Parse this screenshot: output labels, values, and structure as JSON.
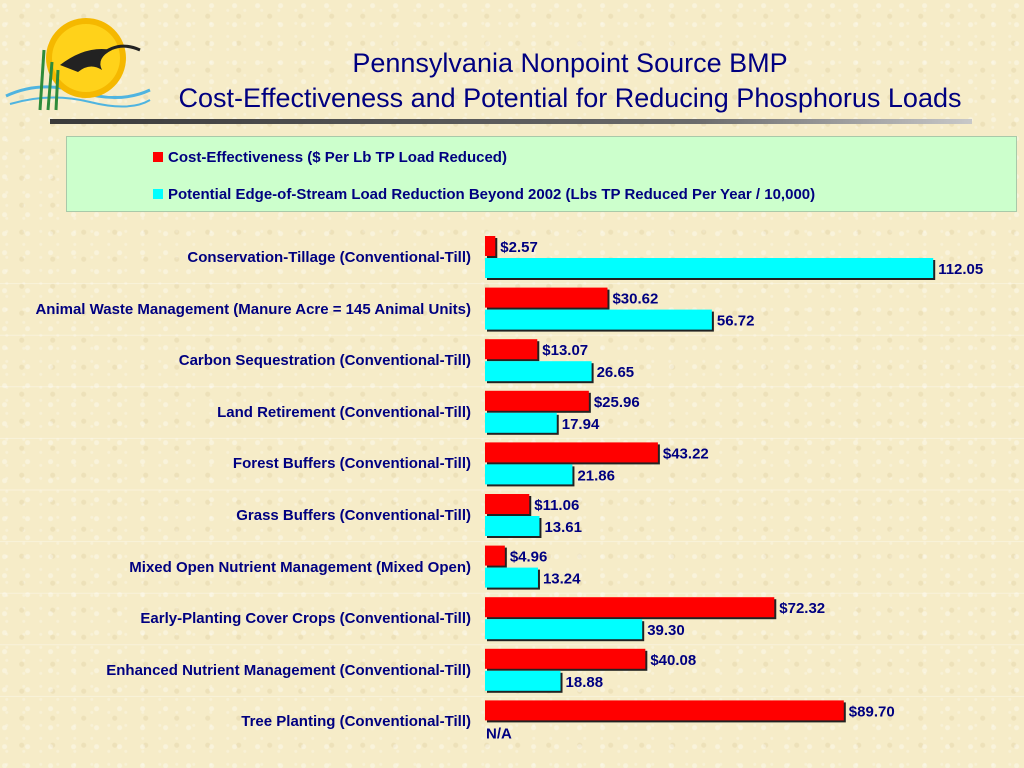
{
  "title": {
    "line1": "Pennsylvania Nonpoint Source BMP",
    "line2": "Cost-Effectiveness and Potential for Reducing Phosphorus Loads"
  },
  "colors": {
    "cost": "#ff0000",
    "load": "#00ffff",
    "title": "#000080",
    "legend_bg": "#ccffcc"
  },
  "chart_data": {
    "type": "bar",
    "orientation": "horizontal",
    "categories": [
      "Conservation-Tillage (Conventional-Till)",
      "Animal Waste Management (Manure Acre = 145 Animal Units)",
      "Carbon Sequestration (Conventional-Till)",
      "Land Retirement (Conventional-Till)",
      "Forest Buffers (Conventional-Till)",
      "Grass Buffers (Conventional-Till)",
      "Mixed Open Nutrient Management (Mixed Open)",
      "Early-Planting Cover Crops (Conventional-Till)",
      "Enhanced Nutrient Management (Conventional-Till)",
      "Tree Planting (Conventional-Till)"
    ],
    "series": [
      {
        "name": "Cost-Effectiveness ($ Per Lb TP Load Reduced)",
        "values": [
          2.57,
          30.62,
          13.07,
          25.96,
          43.22,
          11.06,
          4.96,
          72.32,
          40.08,
          89.7
        ],
        "labels": [
          "$2.57",
          "$30.62",
          "$13.07",
          "$25.96",
          "$43.22",
          "$11.06",
          "$4.96",
          "$72.32",
          "$40.08",
          "$89.70"
        ]
      },
      {
        "name": "Potential Edge-of-Stream Load Reduction Beyond 2002 (Lbs TP Reduced Per Year / 10,000)",
        "values": [
          112.05,
          56.72,
          26.65,
          17.94,
          21.86,
          13.61,
          13.24,
          39.3,
          18.88,
          null
        ],
        "labels": [
          "112.05",
          "56.72",
          "26.65",
          "17.94",
          "21.86",
          "13.61",
          "13.24",
          "39.30",
          "18.88",
          "N/A"
        ]
      }
    ],
    "xlim": [
      0,
      115
    ],
    "legend": "top",
    "grid": false
  }
}
